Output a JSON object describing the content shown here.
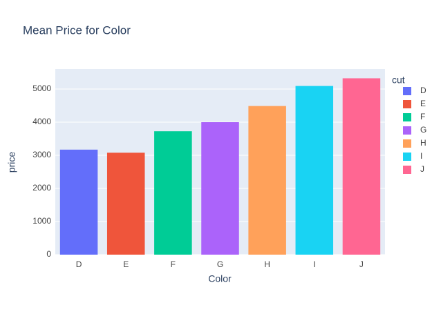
{
  "chart_data": {
    "type": "bar",
    "title": "Mean Price for Color",
    "x_label": "Color",
    "y_label": "price",
    "legend_title": "cut",
    "categories": [
      "D",
      "E",
      "F",
      "G",
      "H",
      "I",
      "J"
    ],
    "series": [
      {
        "name": "D",
        "color": "#636efa",
        "values": [
          3170,
          null,
          null,
          null,
          null,
          null,
          null
        ]
      },
      {
        "name": "E",
        "color": "#ef553b",
        "values": [
          null,
          3077,
          null,
          null,
          null,
          null,
          null
        ]
      },
      {
        "name": "F",
        "color": "#00cc96",
        "values": [
          null,
          null,
          3725,
          null,
          null,
          null,
          null
        ]
      },
      {
        "name": "G",
        "color": "#ab63fa",
        "values": [
          null,
          null,
          null,
          3999,
          null,
          null,
          null
        ]
      },
      {
        "name": "H",
        "color": "#ffa15a",
        "values": [
          null,
          null,
          null,
          null,
          4487,
          null,
          null
        ]
      },
      {
        "name": "I",
        "color": "#19d3f3",
        "values": [
          null,
          null,
          null,
          null,
          null,
          5092,
          null
        ]
      },
      {
        "name": "J",
        "color": "#ff6692",
        "values": [
          null,
          null,
          null,
          null,
          null,
          null,
          5324
        ]
      }
    ],
    "ylim": [
      0,
      5604
    ],
    "yticks": [
      0,
      1000,
      2000,
      3000,
      4000,
      5000
    ],
    "grid": true,
    "legend": "right"
  }
}
